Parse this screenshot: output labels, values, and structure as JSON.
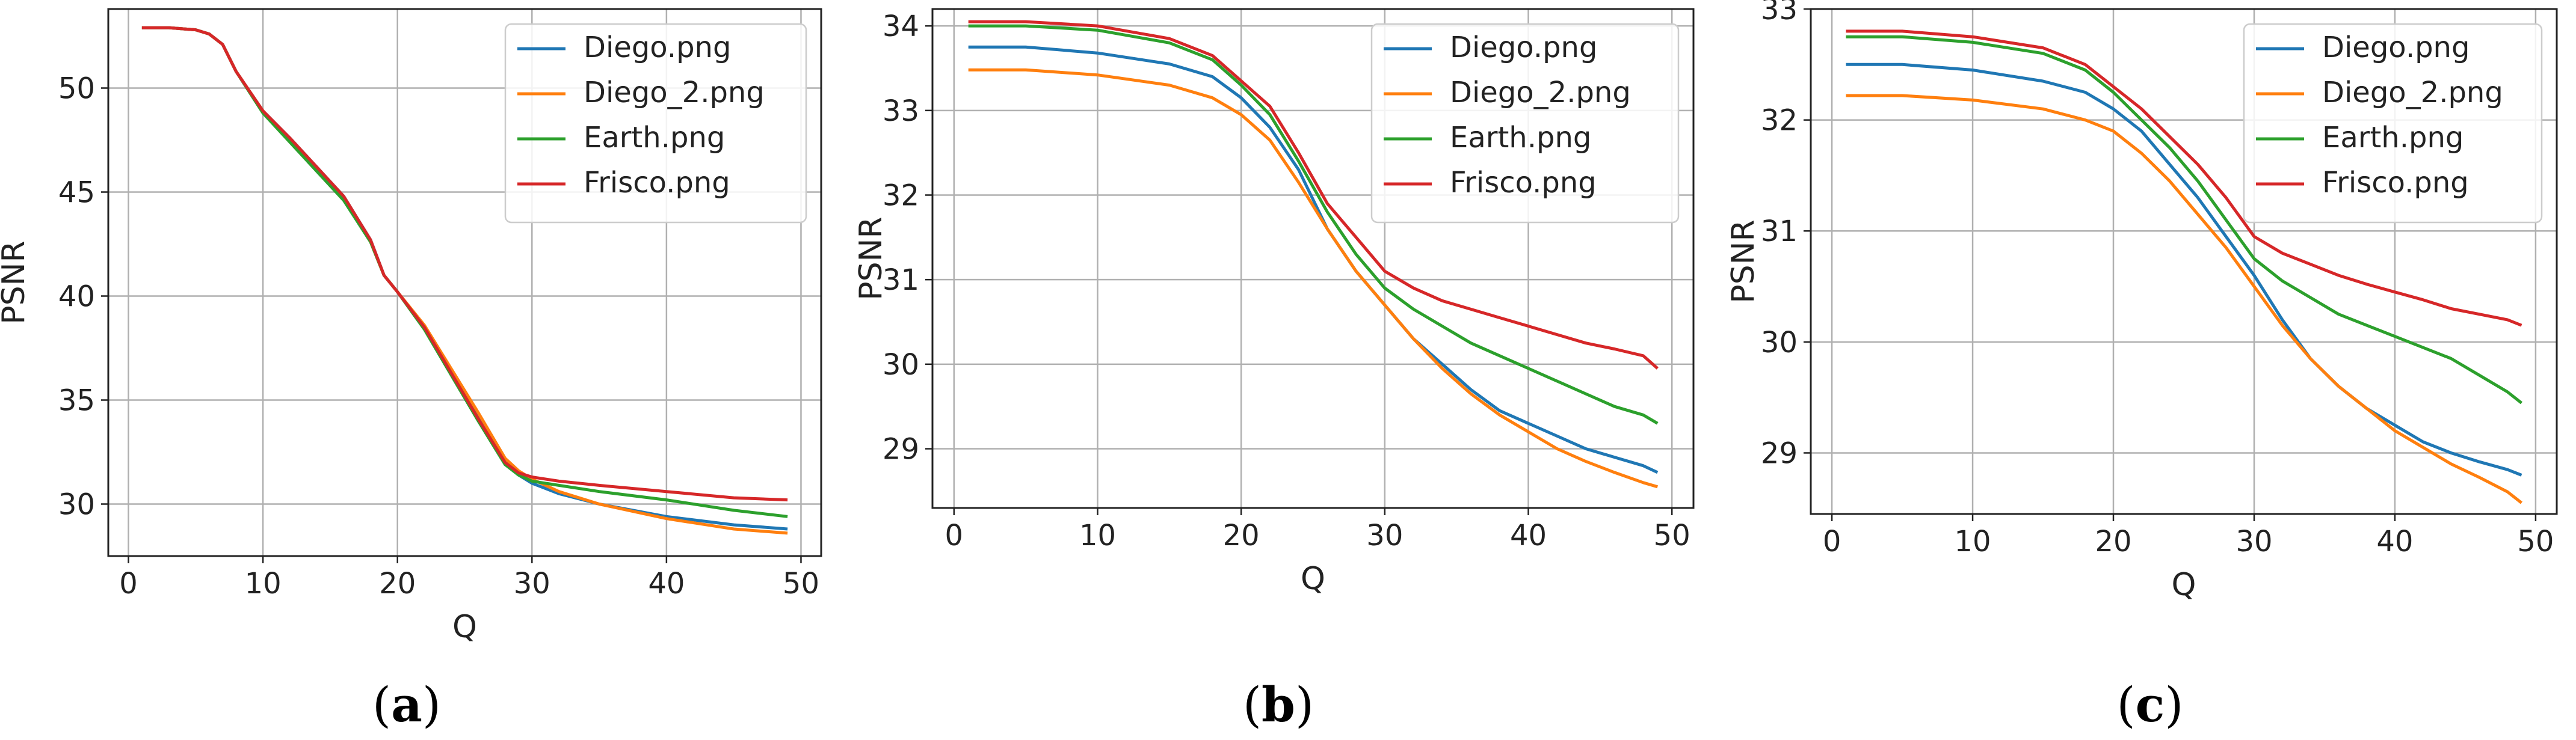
{
  "chart_data": [
    {
      "type": "line",
      "id": "a",
      "caption": "a",
      "xlabel": "Q",
      "ylabel": "PSNR",
      "xlim": [
        -1.5,
        51.5
      ],
      "ylim": [
        27.5,
        53.8
      ],
      "xticks": [
        0,
        10,
        20,
        30,
        40,
        50
      ],
      "yticks": [
        30,
        35,
        40,
        45,
        50
      ],
      "grid": true,
      "legend": "top-right",
      "series": [
        {
          "name": "Diego.png",
          "color": "#1f77b4",
          "x": [
            1,
            3,
            5,
            6,
            7,
            8,
            10,
            12,
            14,
            16,
            18,
            19,
            20,
            22,
            24,
            26,
            28,
            29,
            30,
            32,
            35,
            40,
            45,
            49
          ],
          "y": [
            52.9,
            52.9,
            52.8,
            52.6,
            52.1,
            50.8,
            48.9,
            47.6,
            46.2,
            44.8,
            42.7,
            41.0,
            40.2,
            38.5,
            36.3,
            34.2,
            32.0,
            31.4,
            31.0,
            30.5,
            30.0,
            29.4,
            29.0,
            28.8
          ]
        },
        {
          "name": "Diego_2.png",
          "color": "#ff7f0e",
          "x": [
            1,
            3,
            5,
            6,
            7,
            8,
            10,
            12,
            14,
            16,
            18,
            19,
            20,
            22,
            24,
            26,
            28,
            29,
            30,
            32,
            35,
            40,
            45,
            49
          ],
          "y": [
            52.9,
            52.9,
            52.8,
            52.6,
            52.1,
            50.8,
            48.9,
            47.5,
            46.1,
            44.7,
            42.6,
            41.0,
            40.2,
            38.6,
            36.5,
            34.4,
            32.2,
            31.6,
            31.2,
            30.6,
            30.0,
            29.3,
            28.8,
            28.6
          ]
        },
        {
          "name": "Earth.png",
          "color": "#2ca02c",
          "x": [
            1,
            3,
            5,
            6,
            7,
            8,
            10,
            12,
            14,
            16,
            18,
            19,
            20,
            22,
            24,
            26,
            28,
            29,
            30,
            32,
            35,
            40,
            45,
            49
          ],
          "y": [
            52.9,
            52.9,
            52.8,
            52.6,
            52.1,
            50.8,
            48.8,
            47.4,
            46.0,
            44.6,
            42.6,
            41.0,
            40.2,
            38.4,
            36.2,
            34.0,
            31.9,
            31.4,
            31.1,
            30.9,
            30.6,
            30.2,
            29.7,
            29.4
          ]
        },
        {
          "name": "Frisco.png",
          "color": "#d62728",
          "x": [
            1,
            3,
            5,
            6,
            7,
            8,
            10,
            12,
            14,
            16,
            18,
            19,
            20,
            22,
            24,
            26,
            28,
            29,
            30,
            32,
            35,
            40,
            45,
            49
          ],
          "y": [
            52.9,
            52.9,
            52.8,
            52.6,
            52.1,
            50.8,
            48.9,
            47.6,
            46.2,
            44.8,
            42.7,
            41.0,
            40.2,
            38.5,
            36.3,
            34.1,
            32.0,
            31.5,
            31.3,
            31.1,
            30.9,
            30.6,
            30.3,
            30.2
          ]
        }
      ]
    },
    {
      "type": "line",
      "id": "b",
      "caption": "b",
      "xlabel": "Q",
      "ylabel": "PSNR",
      "xlim": [
        -1.5,
        51.5
      ],
      "ylim": [
        28.3,
        34.2
      ],
      "xticks": [
        0,
        10,
        20,
        30,
        40,
        50
      ],
      "yticks": [
        29,
        30,
        31,
        32,
        33,
        34
      ],
      "grid": true,
      "legend": "top-right",
      "series": [
        {
          "name": "Diego.png",
          "color": "#1f77b4",
          "x": [
            1,
            5,
            10,
            15,
            18,
            20,
            22,
            24,
            26,
            28,
            30,
            32,
            34,
            36,
            38,
            40,
            42,
            44,
            46,
            48,
            49
          ],
          "y": [
            33.75,
            33.75,
            33.68,
            33.55,
            33.4,
            33.15,
            32.8,
            32.3,
            31.6,
            31.1,
            30.7,
            30.3,
            30.0,
            29.7,
            29.45,
            29.3,
            29.15,
            29.0,
            28.9,
            28.8,
            28.72
          ]
        },
        {
          "name": "Diego_2.png",
          "color": "#ff7f0e",
          "x": [
            1,
            5,
            10,
            15,
            18,
            20,
            22,
            24,
            26,
            28,
            30,
            32,
            34,
            36,
            38,
            40,
            42,
            44,
            46,
            48,
            49
          ],
          "y": [
            33.48,
            33.48,
            33.42,
            33.3,
            33.15,
            32.95,
            32.65,
            32.15,
            31.6,
            31.1,
            30.7,
            30.3,
            29.95,
            29.65,
            29.4,
            29.2,
            29.0,
            28.85,
            28.72,
            28.6,
            28.55
          ]
        },
        {
          "name": "Earth.png",
          "color": "#2ca02c",
          "x": [
            1,
            5,
            10,
            15,
            18,
            20,
            22,
            24,
            26,
            28,
            30,
            32,
            34,
            36,
            38,
            40,
            42,
            44,
            46,
            48,
            49
          ],
          "y": [
            34.0,
            34.0,
            33.95,
            33.8,
            33.6,
            33.3,
            32.95,
            32.4,
            31.8,
            31.3,
            30.9,
            30.65,
            30.45,
            30.25,
            30.1,
            29.95,
            29.8,
            29.65,
            29.5,
            29.4,
            29.3
          ]
        },
        {
          "name": "Frisco.png",
          "color": "#d62728",
          "x": [
            1,
            5,
            10,
            15,
            18,
            20,
            22,
            24,
            26,
            28,
            30,
            32,
            34,
            36,
            38,
            40,
            42,
            44,
            46,
            48,
            49
          ],
          "y": [
            34.05,
            34.05,
            34.0,
            33.85,
            33.65,
            33.35,
            33.05,
            32.5,
            31.9,
            31.5,
            31.1,
            30.9,
            30.75,
            30.65,
            30.55,
            30.45,
            30.35,
            30.25,
            30.18,
            30.1,
            29.95
          ]
        }
      ]
    },
    {
      "type": "line",
      "id": "c",
      "caption": "c",
      "xlabel": "Q",
      "ylabel": "PSNR",
      "xlim": [
        -1.5,
        51.5
      ],
      "ylim": [
        28.45,
        33.0
      ],
      "xticks": [
        0,
        10,
        20,
        30,
        40,
        50
      ],
      "yticks": [
        29,
        30,
        31,
        32,
        33
      ],
      "grid": true,
      "legend": "top-right",
      "series": [
        {
          "name": "Diego.png",
          "color": "#1f77b4",
          "x": [
            1,
            5,
            10,
            15,
            18,
            20,
            22,
            24,
            26,
            28,
            30,
            32,
            34,
            36,
            38,
            40,
            42,
            44,
            46,
            48,
            49
          ],
          "y": [
            32.5,
            32.5,
            32.45,
            32.35,
            32.25,
            32.1,
            31.9,
            31.6,
            31.3,
            30.95,
            30.6,
            30.2,
            29.85,
            29.6,
            29.4,
            29.25,
            29.1,
            29.0,
            28.92,
            28.85,
            28.8
          ]
        },
        {
          "name": "Diego_2.png",
          "color": "#ff7f0e",
          "x": [
            1,
            5,
            10,
            15,
            18,
            20,
            22,
            24,
            26,
            28,
            30,
            32,
            34,
            36,
            38,
            40,
            42,
            44,
            46,
            48,
            49
          ],
          "y": [
            32.22,
            32.22,
            32.18,
            32.1,
            32.0,
            31.9,
            31.7,
            31.45,
            31.15,
            30.85,
            30.5,
            30.15,
            29.85,
            29.6,
            29.4,
            29.2,
            29.05,
            28.9,
            28.78,
            28.65,
            28.55
          ]
        },
        {
          "name": "Earth.png",
          "color": "#2ca02c",
          "x": [
            1,
            5,
            10,
            15,
            18,
            20,
            22,
            24,
            26,
            28,
            30,
            32,
            34,
            36,
            38,
            40,
            42,
            44,
            46,
            48,
            49
          ],
          "y": [
            32.75,
            32.75,
            32.7,
            32.6,
            32.45,
            32.25,
            32.0,
            31.75,
            31.45,
            31.1,
            30.75,
            30.55,
            30.4,
            30.25,
            30.15,
            30.05,
            29.95,
            29.85,
            29.7,
            29.55,
            29.45
          ]
        },
        {
          "name": "Frisco.png",
          "color": "#d62728",
          "x": [
            1,
            5,
            10,
            15,
            18,
            20,
            22,
            24,
            26,
            28,
            30,
            32,
            34,
            36,
            38,
            40,
            42,
            44,
            46,
            48,
            49
          ],
          "y": [
            32.8,
            32.8,
            32.75,
            32.65,
            32.5,
            32.3,
            32.1,
            31.85,
            31.6,
            31.3,
            30.95,
            30.8,
            30.7,
            30.6,
            30.52,
            30.45,
            30.38,
            30.3,
            30.25,
            30.2,
            30.15
          ]
        }
      ]
    }
  ]
}
